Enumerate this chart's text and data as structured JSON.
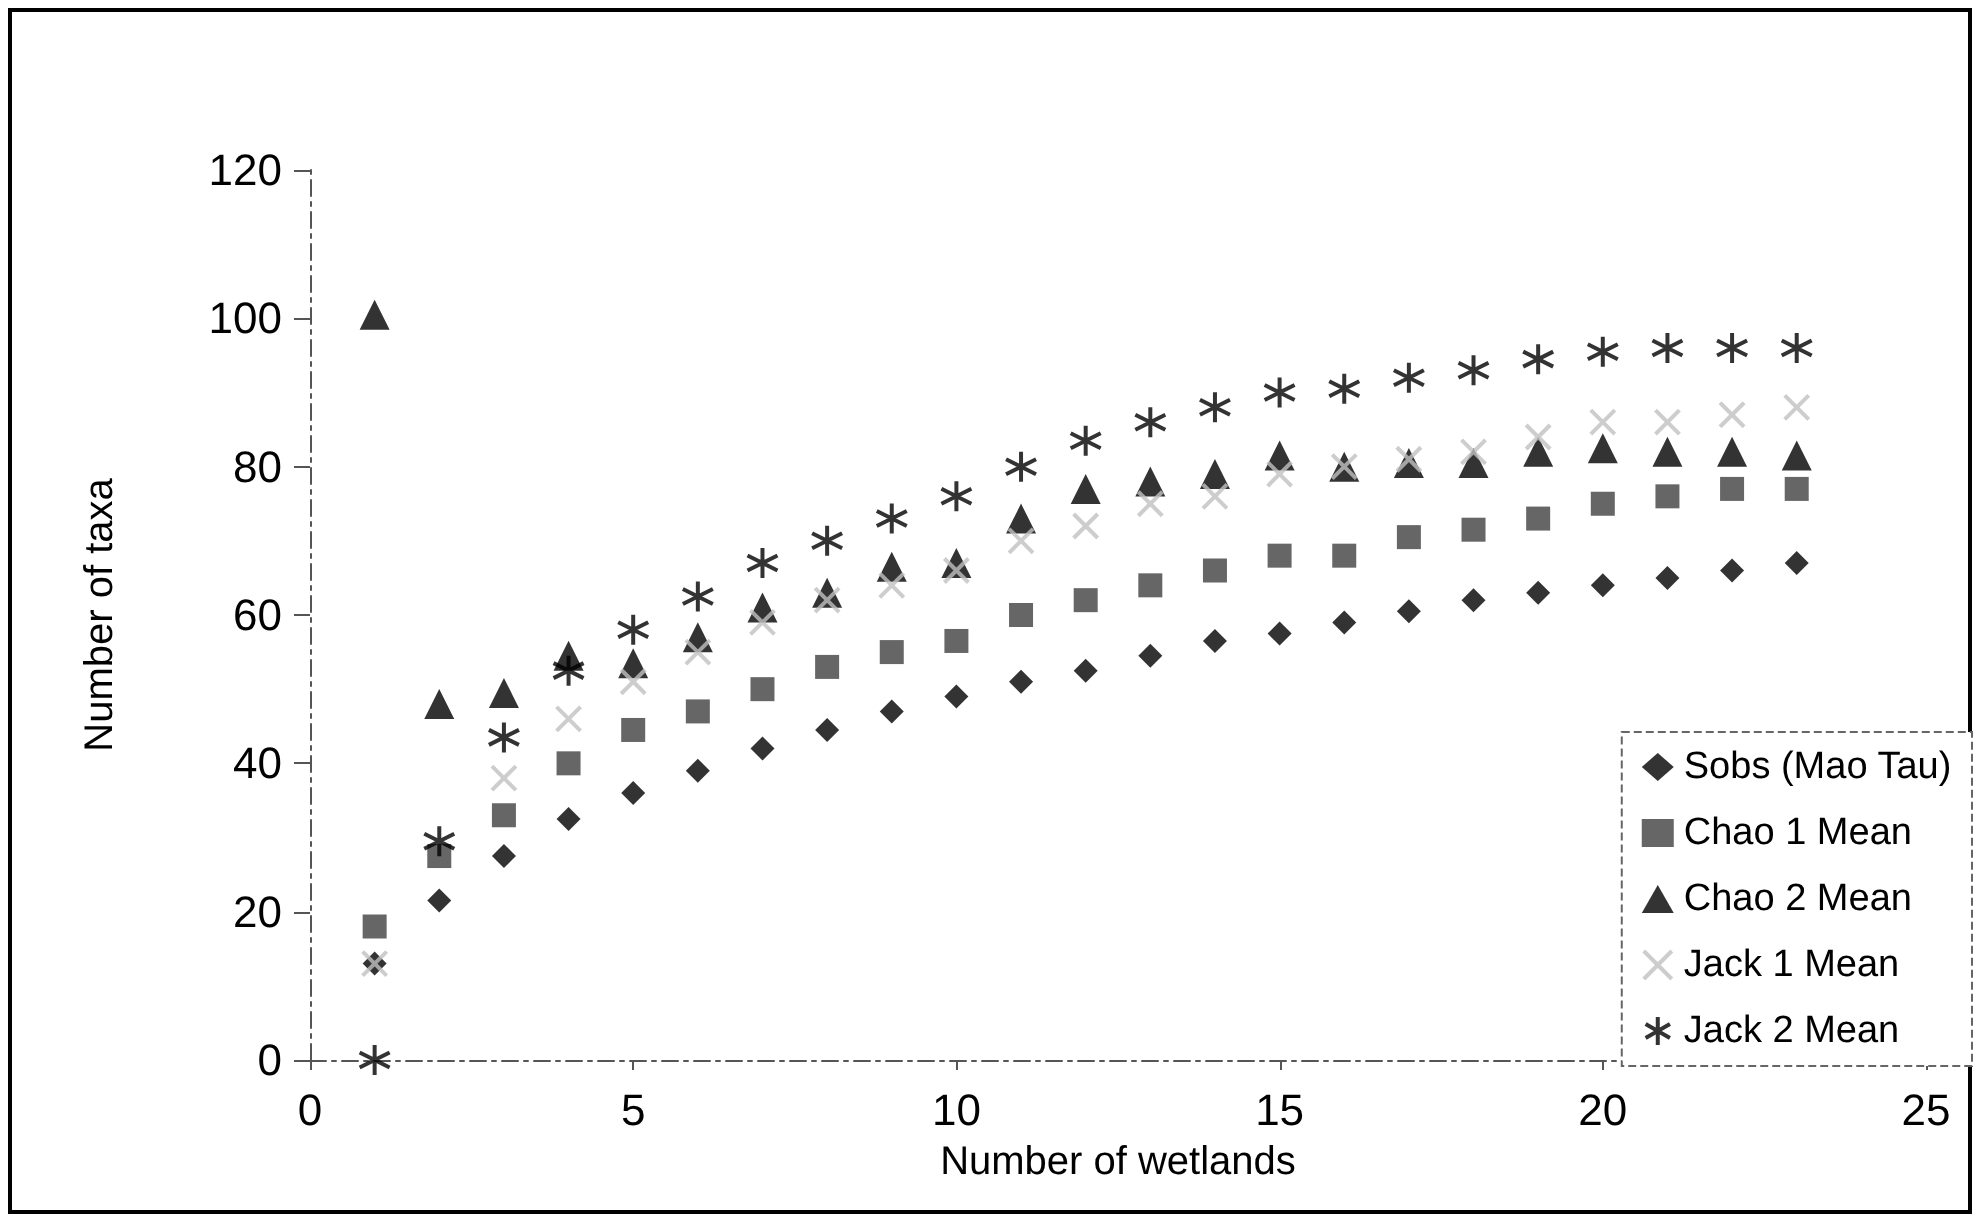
{
  "chart_data": {
    "type": "scatter",
    "xlabel": "Number of wetlands",
    "ylabel": "Number of taxa",
    "x": [
      1,
      2,
      3,
      4,
      5,
      6,
      7,
      8,
      9,
      10,
      11,
      12,
      13,
      14,
      15,
      16,
      17,
      18,
      19,
      20,
      21,
      22,
      23
    ],
    "xlim": [
      0,
      25
    ],
    "xticks": [
      0,
      5,
      10,
      15,
      20,
      25
    ],
    "ylim": [
      0,
      120
    ],
    "yticks": [
      0,
      20,
      40,
      60,
      80,
      100,
      120
    ],
    "grid": false,
    "legend": "bottom right",
    "line_style": "dashed",
    "series": [
      {
        "name": "Sobs (Mao Tau)",
        "color": "#000000",
        "marker": "diamond",
        "values": [
          13,
          21.5,
          27.5,
          32.5,
          36,
          39,
          42,
          44.5,
          47,
          49,
          51,
          52.5,
          54.5,
          56.5,
          57.5,
          59,
          60.5,
          62,
          63,
          64,
          65,
          66,
          67
        ]
      },
      {
        "name": "Chao 1 Mean",
        "color": "#404040",
        "marker": "square",
        "values": [
          18,
          27.5,
          33,
          40,
          44.5,
          47,
          50,
          53,
          55,
          56.5,
          60,
          62,
          64,
          66,
          68,
          68,
          70.5,
          71.5,
          73,
          75,
          76,
          77,
          77
        ]
      },
      {
        "name": "Chao 2 Mean",
        "color": "#000000",
        "marker": "triangle",
        "values": [
          100.5,
          48,
          49.5,
          54.5,
          53.5,
          57,
          61,
          63,
          66.5,
          67,
          73,
          77,
          78,
          79,
          81.5,
          80,
          80.5,
          80.5,
          82,
          82.5,
          82,
          82,
          81.5
        ]
      },
      {
        "name": "Jack 1 Mean",
        "color": "#c0c0c0",
        "marker": "cross",
        "values": [
          13,
          null,
          38,
          46,
          51,
          55,
          59,
          62,
          64,
          66,
          70,
          72,
          75,
          76,
          79,
          80,
          81,
          82,
          84,
          86,
          86,
          87,
          88
        ]
      },
      {
        "name": "Jack 2 Mean",
        "color": "#000000",
        "marker": "cross",
        "values": [
          0,
          29.5,
          43.5,
          52.5,
          58,
          62.5,
          67,
          70,
          73,
          76,
          80,
          83.5,
          86,
          88,
          90,
          90.5,
          92,
          93,
          94.5,
          95.5,
          96,
          96,
          96
        ]
      }
    ]
  }
}
